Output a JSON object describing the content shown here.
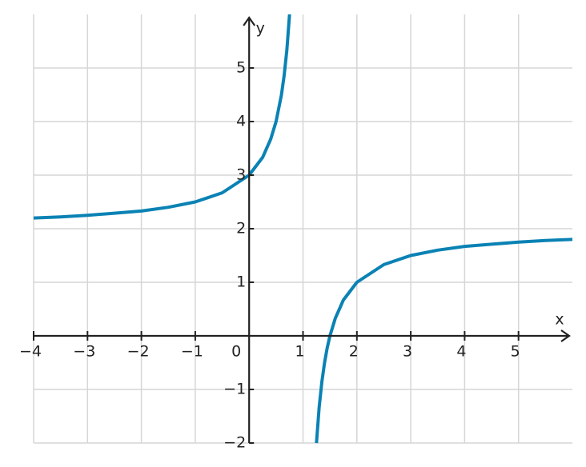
{
  "chart_data": {
    "type": "line",
    "x_label": "x",
    "y_label": "y",
    "xlim": [
      -4,
      6
    ],
    "ylim": [
      -2,
      6
    ],
    "xticks": [
      {
        "value": -4,
        "label": "−4"
      },
      {
        "value": -3,
        "label": "−3"
      },
      {
        "value": -2,
        "label": "−2"
      },
      {
        "value": -1,
        "label": "−1"
      },
      0,
      1,
      2,
      3,
      4,
      5
    ],
    "yticks": [
      {
        "value": -2,
        "label": "−2"
      },
      {
        "value": -1,
        "label": "−1"
      },
      1,
      2,
      3,
      4,
      5
    ],
    "grid": true,
    "x": [
      -4,
      -3.5,
      -3,
      -2.5,
      -2,
      -1.5,
      -1,
      -0.5,
      0,
      0.25,
      0.4,
      0.5,
      0.6,
      0.65,
      0.7,
      0.75,
      1,
      1.25,
      1.3,
      1.35,
      1.4,
      1.45,
      1.5,
      1.6,
      1.75,
      2,
      2.5,
      3,
      3.5,
      4,
      4.5,
      5,
      5.5,
      6
    ],
    "series": [
      {
        "color": "#0a82b4",
        "values": [
          2.2,
          2.22,
          2.25,
          2.29,
          2.33,
          2.4,
          2.5,
          2.67,
          3,
          3.33,
          3.67,
          4,
          4.5,
          4.86,
          5.33,
          6,
          null,
          -2,
          -1.33,
          -0.86,
          -0.5,
          -0.22,
          0,
          0.33,
          0.67,
          1,
          1.33,
          1.5,
          1.6,
          1.67,
          1.71,
          1.75,
          1.78,
          1.8
        ]
      }
    ]
  }
}
